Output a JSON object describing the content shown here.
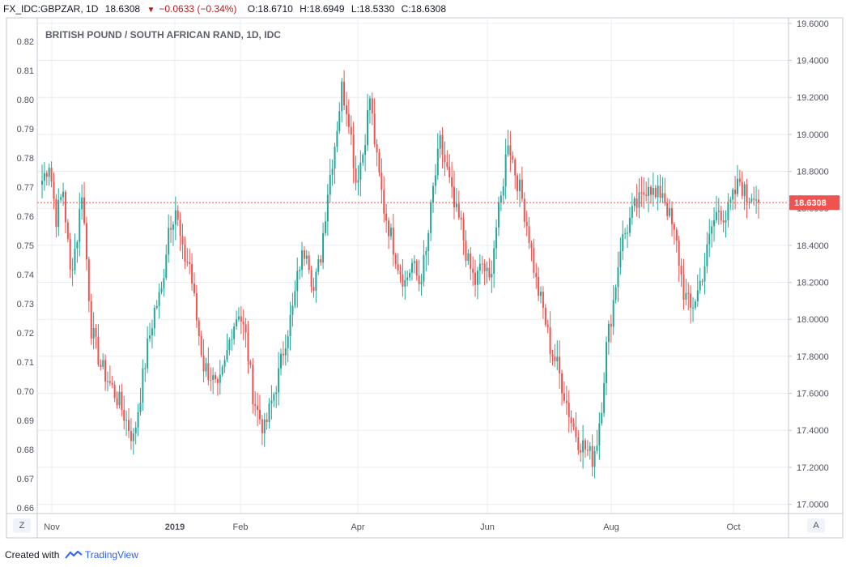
{
  "header": {
    "symbol": "FX_IDC:GBPZAR, 1D",
    "last": "18.6308",
    "change": "−0.0633 (−0.34%)",
    "open": "O:18.6710",
    "high": "H:18.6949",
    "low": "L:18.5330",
    "close": "C:18.6308"
  },
  "footer": {
    "created_with": "Created with",
    "brand": "TradingView"
  },
  "buttons": {
    "zoom": "Z",
    "auto": "A"
  },
  "colors": {
    "up": "#26a69a",
    "down": "#ef5350",
    "grid": "#e9ecf2",
    "last_price_label": "#ef5350"
  },
  "chart_data": {
    "type": "candlestick",
    "title": "BRITISH POUND / SOUTH AFRICAN RAND, 1D, IDC",
    "x_ticks": [
      "Nov",
      "2019",
      "Feb",
      "Apr",
      "Jun",
      "Aug",
      "Oct"
    ],
    "right_axis": {
      "ticks": [
        "19.6000",
        "19.4000",
        "19.2000",
        "19.0000",
        "18.8000",
        "18.6000",
        "18.4000",
        "18.2000",
        "18.0000",
        "17.8000",
        "17.6000",
        "17.4000",
        "17.2000",
        "17.0000"
      ],
      "range": [
        16.95,
        19.63
      ]
    },
    "left_axis": {
      "ticks": [
        "0.82",
        "0.81",
        "0.80",
        "0.79",
        "0.78",
        "0.77",
        "0.76",
        "0.75",
        "0.74",
        "0.73",
        "0.72",
        "0.71",
        "0.70",
        "0.69",
        "0.68",
        "0.67",
        "0.66"
      ],
      "range": [
        0.658,
        0.828
      ]
    },
    "last_price": "18.6308",
    "grid": true,
    "anchors": [
      [
        0,
        18.75
      ],
      [
        3,
        18.85
      ],
      [
        6,
        18.55
      ],
      [
        9,
        18.7
      ],
      [
        12,
        18.25
      ],
      [
        15,
        18.45
      ],
      [
        17,
        18.7
      ],
      [
        21,
        17.95
      ],
      [
        25,
        17.75
      ],
      [
        29,
        17.65
      ],
      [
        33,
        17.55
      ],
      [
        36,
        17.45
      ],
      [
        39,
        17.35
      ],
      [
        42,
        17.6
      ],
      [
        45,
        17.85
      ],
      [
        48,
        18.05
      ],
      [
        51,
        18.15
      ],
      [
        54,
        18.5
      ],
      [
        57,
        18.6
      ],
      [
        60,
        18.35
      ],
      [
        63,
        18.3
      ],
      [
        66,
        18.0
      ],
      [
        69,
        17.75
      ],
      [
        72,
        17.7
      ],
      [
        75,
        17.6
      ],
      [
        78,
        17.75
      ],
      [
        81,
        17.95
      ],
      [
        84,
        18.05
      ],
      [
        87,
        17.9
      ],
      [
        90,
        17.6
      ],
      [
        92,
        17.5
      ],
      [
        95,
        17.4
      ],
      [
        98,
        17.55
      ],
      [
        101,
        17.7
      ],
      [
        104,
        17.9
      ],
      [
        107,
        18.05
      ],
      [
        110,
        18.3
      ],
      [
        113,
        18.4
      ],
      [
        116,
        18.15
      ],
      [
        119,
        18.35
      ],
      [
        122,
        18.7
      ],
      [
        125,
        18.95
      ],
      [
        128,
        19.25
      ],
      [
        131,
        19.1
      ],
      [
        134,
        18.75
      ],
      [
        137,
        18.9
      ],
      [
        140,
        19.2
      ],
      [
        143,
        18.85
      ],
      [
        146,
        18.6
      ],
      [
        149,
        18.45
      ],
      [
        152,
        18.3
      ],
      [
        155,
        18.2
      ],
      [
        158,
        18.3
      ],
      [
        161,
        18.2
      ],
      [
        164,
        18.35
      ],
      [
        167,
        18.7
      ],
      [
        170,
        18.95
      ],
      [
        173,
        18.8
      ],
      [
        176,
        18.6
      ],
      [
        179,
        18.5
      ],
      [
        182,
        18.3
      ],
      [
        185,
        18.2
      ],
      [
        188,
        18.3
      ],
      [
        191,
        18.2
      ],
      [
        194,
        18.5
      ],
      [
        196,
        18.65
      ],
      [
        199,
        18.98
      ],
      [
        202,
        18.8
      ],
      [
        205,
        18.65
      ],
      [
        208,
        18.45
      ],
      [
        211,
        18.2
      ],
      [
        214,
        18.05
      ],
      [
        217,
        17.85
      ],
      [
        220,
        17.75
      ],
      [
        223,
        17.6
      ],
      [
        226,
        17.45
      ],
      [
        229,
        17.35
      ],
      [
        232,
        17.3
      ],
      [
        235,
        17.25
      ],
      [
        237,
        17.35
      ],
      [
        239,
        17.55
      ],
      [
        241,
        17.85
      ],
      [
        244,
        18.1
      ],
      [
        247,
        18.4
      ],
      [
        250,
        18.5
      ],
      [
        253,
        18.6
      ],
      [
        256,
        18.65
      ],
      [
        259,
        18.75
      ],
      [
        262,
        18.65
      ],
      [
        265,
        18.7
      ],
      [
        268,
        18.55
      ],
      [
        271,
        18.4
      ],
      [
        274,
        18.15
      ],
      [
        277,
        18.05
      ],
      [
        280,
        18.15
      ],
      [
        283,
        18.3
      ],
      [
        286,
        18.5
      ],
      [
        289,
        18.6
      ],
      [
        292,
        18.55
      ],
      [
        295,
        18.65
      ],
      [
        298,
        18.75
      ],
      [
        301,
        18.65
      ],
      [
        304,
        18.7
      ],
      [
        306,
        18.63
      ]
    ]
  }
}
